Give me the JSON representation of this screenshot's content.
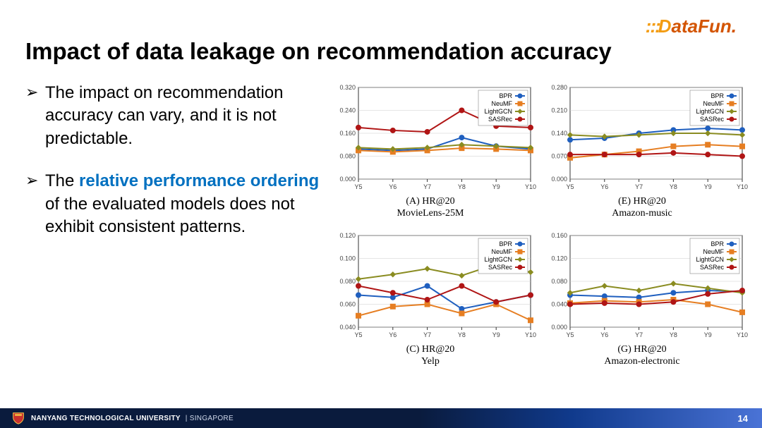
{
  "logo": {
    "dots": ":::",
    "d": "D",
    "rest": "ataFun."
  },
  "title": "Impact of data leakage on recommendation accuracy",
  "bullets": [
    {
      "pre": "The impact on recommendation accuracy can vary, and it is not predictable.",
      "hl": "",
      "post": ""
    },
    {
      "pre": "The ",
      "hl": "relative performance ordering",
      "post": " of the evaluated models does not exhibit consistent patterns."
    }
  ],
  "legend": [
    "BPR",
    "NeuMF",
    "LightGCN",
    "SASRec"
  ],
  "series_colors": {
    "BPR": "#1f5fbf",
    "NeuMF": "#e67e22",
    "LightGCN": "#8a8c21",
    "SASRec": "#b01515"
  },
  "series_markers": {
    "BPR": "circle",
    "NeuMF": "square",
    "LightGCN": "diamond",
    "SASRec": "circle"
  },
  "chart_style": {
    "background": "#ffffff",
    "grid": "#cccccc",
    "axis": "#333333",
    "tick_font": 9,
    "line_width": 2,
    "marker_size": 3.5,
    "legend_font": 9
  },
  "x_labels": [
    "Y5",
    "Y6",
    "Y7",
    "Y8",
    "Y9",
    "Y10"
  ],
  "charts": {
    "A": {
      "caption_l1": "(A) HR@20",
      "caption_l2": "MovieLens-25M",
      "ylim": [
        0.0,
        0.32
      ],
      "ytick_step": 0.08,
      "series": {
        "BPR": [
          0.105,
          0.1,
          0.105,
          0.145,
          0.115,
          0.105
        ],
        "NeuMF": [
          0.1,
          0.095,
          0.1,
          0.108,
          0.105,
          0.1
        ],
        "LightGCN": [
          0.11,
          0.105,
          0.11,
          0.12,
          0.115,
          0.11
        ],
        "SASRec": [
          0.18,
          0.17,
          0.165,
          0.24,
          0.185,
          0.18
        ]
      }
    },
    "E": {
      "caption_l1": "(E) HR@20",
      "caption_l2": "Amazon-music",
      "ylim": [
        0.0,
        0.28
      ],
      "ytick_step": 0.07,
      "series": {
        "BPR": [
          0.12,
          0.125,
          0.14,
          0.15,
          0.155,
          0.15
        ],
        "NeuMF": [
          0.065,
          0.075,
          0.085,
          0.1,
          0.105,
          0.1
        ],
        "LightGCN": [
          0.135,
          0.13,
          0.135,
          0.14,
          0.14,
          0.135
        ],
        "SASRec": [
          0.075,
          0.075,
          0.075,
          0.08,
          0.075,
          0.07
        ]
      }
    },
    "C": {
      "caption_l1": "(C) HR@20",
      "caption_l2": "Yelp",
      "ylim": [
        0.04,
        0.12
      ],
      "ytick_step": 0.02,
      "series": {
        "BPR": [
          0.068,
          0.066,
          0.076,
          0.056,
          0.062,
          0.068
        ],
        "NeuMF": [
          0.05,
          0.058,
          0.06,
          0.052,
          0.06,
          0.046
        ],
        "LightGCN": [
          0.082,
          0.086,
          0.091,
          0.085,
          0.095,
          0.088
        ],
        "SASRec": [
          0.076,
          0.07,
          0.064,
          0.076,
          0.062,
          0.068
        ]
      }
    },
    "G": {
      "caption_l1": "(G) HR@20",
      "caption_l2": "Amazon-electronic",
      "ylim": [
        0.0,
        0.16
      ],
      "ytick_step": 0.04,
      "series": {
        "BPR": [
          0.056,
          0.054,
          0.052,
          0.06,
          0.064,
          0.062
        ],
        "NeuMF": [
          0.042,
          0.046,
          0.044,
          0.048,
          0.04,
          0.026
        ],
        "LightGCN": [
          0.06,
          0.072,
          0.064,
          0.076,
          0.068,
          0.06
        ],
        "SASRec": [
          0.04,
          0.042,
          0.04,
          0.044,
          0.058,
          0.064
        ]
      }
    }
  },
  "footer": {
    "uni": "NANYANG TECHNOLOGICAL UNIVERSITY",
    "sg": "SINGAPORE",
    "page": "14"
  }
}
